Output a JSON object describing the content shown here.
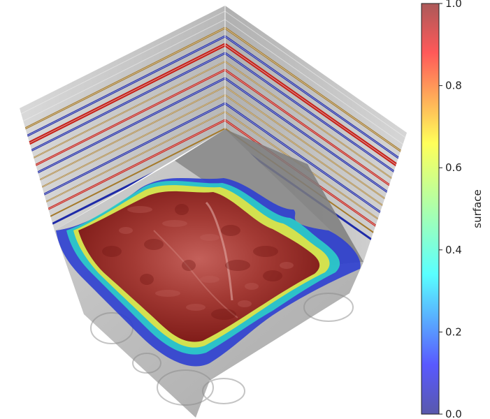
{
  "chart_data": {
    "type": "3d-surface",
    "colormap": "jet",
    "colorbar": {
      "label": "surface",
      "ticks": [
        0.0,
        0.2,
        0.4,
        0.6,
        0.8,
        1.0
      ],
      "tick_labels": [
        "0.0",
        "0.2",
        "0.4",
        "0.6",
        "0.8",
        "1.0"
      ],
      "range": [
        0.0,
        1.0
      ]
    },
    "colors": {
      "seismic_red": "#c62018",
      "seismic_blue": "#1e2aa8",
      "seismic_gold": "#a57a2a",
      "volume_gray": "#9b9b9b",
      "surface_high": "#8a1d1a"
    }
  }
}
